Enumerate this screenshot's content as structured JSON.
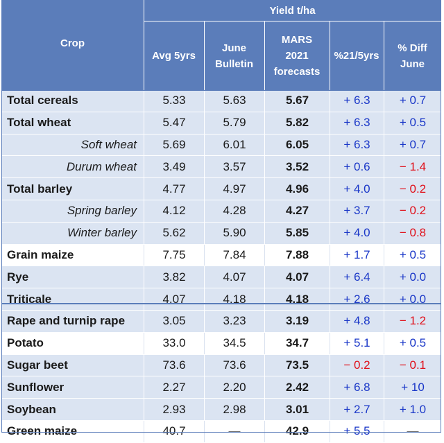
{
  "header": {
    "group_label": "Yield t/ha",
    "crop": "Crop",
    "avg": "Avg 5yrs",
    "june_1": "June",
    "june_2": "Bulletin",
    "mars_1": "MARS",
    "mars_2": "2021",
    "mars_3": "forecasts",
    "pct": "%21/5yrs",
    "diff_1": "% Diff",
    "diff_2": "June"
  },
  "rows": [
    {
      "crop": "Total cereals",
      "avg": "5.33",
      "june": "5.63",
      "mars": "5.67",
      "pct": "+ 6.3",
      "diff": "+ 0.7"
    },
    {
      "crop": "Total wheat",
      "avg": "5.47",
      "june": "5.79",
      "mars": "5.82",
      "pct": "+ 6.3",
      "diff": "+ 0.5"
    },
    {
      "crop": "Soft wheat",
      "avg": "5.69",
      "june": "6.01",
      "mars": "6.05",
      "pct": "+ 6.3",
      "diff": "+ 0.7"
    },
    {
      "crop": "Durum wheat",
      "avg": "3.49",
      "june": "3.57",
      "mars": "3.52",
      "pct": "+ 0.6",
      "diff": "− 1.4"
    },
    {
      "crop": "Total barley",
      "avg": "4.77",
      "june": "4.97",
      "mars": "4.96",
      "pct": "+ 4.0",
      "diff": "− 0.2"
    },
    {
      "crop": "Spring barley",
      "avg": "4.12",
      "june": "4.28",
      "mars": "4.27",
      "pct": "+ 3.7",
      "diff": "− 0.2"
    },
    {
      "crop": "Winter barley",
      "avg": "5.62",
      "june": "5.90",
      "mars": "5.85",
      "pct": "+ 4.0",
      "diff": "− 0.8"
    },
    {
      "crop": "Grain maize",
      "avg": "7.75",
      "june": "7.84",
      "mars": "7.88",
      "pct": "+ 1.7",
      "diff": "+ 0.5"
    },
    {
      "crop": "Rye",
      "avg": "3.82",
      "june": "4.07",
      "mars": "4.07",
      "pct": "+ 6.4",
      "diff": "+ 0.0"
    },
    {
      "crop": "Triticale",
      "avg": "4.07",
      "june": "4.18",
      "mars": "4.18",
      "pct": "+ 2.6",
      "diff": "+ 0.0"
    },
    {
      "crop": "Rape and turnip rape",
      "avg": "3.05",
      "june": "3.23",
      "mars": "3.19",
      "pct": "+ 4.8",
      "diff": "− 1.2"
    },
    {
      "crop": "Potato",
      "avg": "33.0",
      "june": "34.5",
      "mars": "34.7",
      "pct": "+ 5.1",
      "diff": "+ 0.5"
    },
    {
      "crop": "Sugar beet",
      "avg": "73.6",
      "june": "73.6",
      "mars": "73.5",
      "pct": "− 0.2",
      "diff": "− 0.1"
    },
    {
      "crop": "Sunflower",
      "avg": "2.27",
      "june": "2.20",
      "mars": "2.42",
      "pct": "+ 6.8",
      "diff": "+ 10"
    },
    {
      "crop": "Soybean",
      "avg": "2.93",
      "june": "2.98",
      "mars": "3.01",
      "pct": "+ 2.7",
      "diff": "+ 1.0"
    },
    {
      "crop": "Green maize",
      "avg": "40.7",
      "june": "—",
      "mars": "42.9",
      "pct": "+ 5.5",
      "diff": "—"
    }
  ],
  "colors": {
    "header_bg": "#5b7dba",
    "shaded_row": "#dbe4f2",
    "positive": "#1a37c8",
    "negative": "#e0101a"
  }
}
